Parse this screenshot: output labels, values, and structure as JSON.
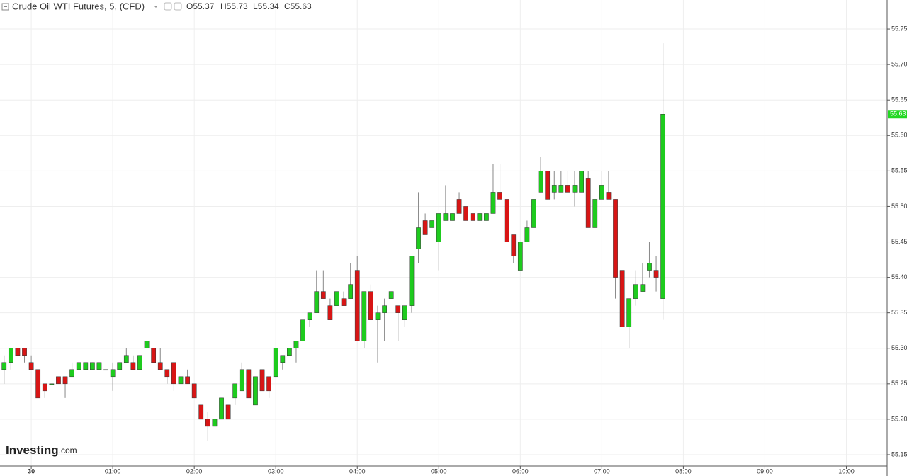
{
  "chart_data": {
    "type": "candlestick",
    "title": "Crude Oil WTI Futures, 5, (CFD)",
    "ohlc_header": [
      "O55.37",
      "H55.73",
      "L55.34",
      "C55.63"
    ],
    "logo": "Investing",
    "logo_suffix": ".com",
    "last_price": 55.63,
    "up_color": "#1ecb1e",
    "down_color": "#d81515",
    "grid": true,
    "x": [
      -20,
      -15,
      -10,
      -5,
      0,
      5,
      10,
      15,
      20,
      25,
      30,
      35,
      40,
      45,
      50,
      55,
      60,
      65,
      70,
      75,
      80,
      85,
      90,
      95,
      100,
      105,
      110,
      115,
      120,
      125,
      130,
      135,
      140,
      145,
      150,
      155,
      160,
      165,
      170,
      175,
      180,
      185,
      190,
      195,
      200,
      205,
      210,
      215,
      220,
      225,
      230,
      235,
      240,
      245,
      250,
      255,
      260,
      265,
      270,
      275,
      280,
      285,
      290,
      295,
      300,
      305,
      310,
      315,
      320,
      325,
      330,
      335,
      340,
      345,
      350,
      355,
      360,
      365,
      370,
      375,
      380,
      385,
      390,
      395,
      400,
      405,
      410,
      415,
      420,
      425,
      430,
      435,
      440,
      445,
      450,
      455,
      460,
      465
    ],
    "open": [
      55.27,
      55.28,
      55.3,
      55.3,
      55.28,
      55.27,
      55.25,
      55.25,
      55.26,
      55.26,
      55.26,
      55.27,
      55.27,
      55.27,
      55.27,
      55.27,
      55.26,
      55.27,
      55.28,
      55.28,
      55.27,
      55.3,
      55.3,
      55.28,
      55.27,
      55.28,
      55.25,
      55.26,
      55.25,
      55.22,
      55.2,
      55.19,
      55.2,
      55.22,
      55.23,
      55.24,
      55.27,
      55.22,
      55.27,
      55.26,
      55.26,
      55.28,
      55.29,
      55.3,
      55.31,
      55.34,
      55.35,
      55.38,
      55.36,
      55.36,
      55.37,
      55.37,
      55.41,
      55.31,
      55.38,
      55.34,
      55.35,
      55.37,
      55.36,
      55.34,
      55.36,
      55.44,
      55.48,
      55.47,
      55.45,
      55.48,
      55.48,
      55.51,
      55.5,
      55.49,
      55.48,
      55.48,
      55.49,
      55.52,
      55.51,
      55.46,
      55.41,
      55.45,
      55.47,
      55.52,
      55.55,
      55.52,
      55.52,
      55.53,
      55.52,
      55.52,
      55.54,
      55.47,
      55.51,
      55.52,
      55.51,
      55.41,
      55.33,
      55.37,
      55.38,
      55.41,
      55.41,
      55.37
    ],
    "high": [
      55.29,
      55.3,
      55.3,
      55.3,
      55.29,
      55.27,
      55.25,
      55.25,
      55.26,
      55.26,
      55.28,
      55.28,
      55.28,
      55.28,
      55.28,
      55.27,
      55.28,
      55.28,
      55.3,
      55.29,
      55.29,
      55.31,
      55.3,
      55.3,
      55.27,
      55.28,
      55.26,
      55.27,
      55.25,
      55.22,
      55.21,
      55.2,
      55.23,
      55.22,
      55.25,
      55.28,
      55.27,
      55.26,
      55.27,
      55.26,
      55.3,
      55.29,
      55.3,
      55.31,
      55.34,
      55.35,
      55.41,
      55.41,
      55.37,
      55.4,
      55.38,
      55.42,
      55.43,
      55.38,
      55.39,
      55.36,
      55.37,
      55.38,
      55.36,
      55.36,
      55.43,
      55.52,
      55.49,
      55.48,
      55.49,
      55.53,
      55.49,
      55.52,
      55.5,
      55.49,
      55.49,
      55.49,
      55.56,
      55.56,
      55.51,
      55.46,
      55.45,
      55.48,
      55.51,
      55.57,
      55.55,
      55.55,
      55.55,
      55.55,
      55.55,
      55.55,
      55.55,
      55.51,
      55.55,
      55.55,
      55.51,
      55.41,
      55.37,
      55.41,
      55.42,
      55.45,
      55.43,
      55.73
    ],
    "low": [
      55.25,
      55.27,
      55.29,
      55.28,
      55.27,
      55.23,
      55.23,
      55.25,
      55.25,
      55.23,
      55.26,
      55.27,
      55.27,
      55.27,
      55.27,
      55.27,
      55.24,
      55.27,
      55.28,
      55.27,
      55.27,
      55.3,
      55.28,
      55.27,
      55.25,
      55.24,
      55.25,
      55.25,
      55.23,
      55.2,
      55.17,
      55.19,
      55.2,
      55.2,
      55.22,
      55.24,
      55.23,
      55.22,
      55.24,
      55.23,
      55.26,
      55.27,
      55.29,
      55.28,
      55.31,
      55.33,
      55.35,
      55.37,
      55.34,
      55.36,
      55.36,
      55.37,
      55.31,
      55.3,
      55.34,
      55.28,
      55.31,
      55.37,
      55.31,
      55.33,
      55.35,
      55.42,
      55.46,
      55.47,
      55.41,
      55.48,
      55.48,
      55.49,
      55.48,
      55.48,
      55.48,
      55.48,
      55.49,
      55.51,
      55.45,
      55.42,
      55.41,
      55.45,
      55.47,
      55.52,
      55.51,
      55.51,
      55.52,
      55.52,
      55.5,
      55.52,
      55.47,
      55.47,
      55.51,
      55.51,
      55.37,
      55.33,
      55.3,
      55.36,
      55.38,
      55.4,
      55.38,
      55.34
    ],
    "close": [
      55.28,
      55.3,
      55.29,
      55.29,
      55.27,
      55.23,
      55.24,
      55.25,
      55.25,
      55.25,
      55.27,
      55.28,
      55.28,
      55.28,
      55.28,
      55.27,
      55.27,
      55.28,
      55.29,
      55.27,
      55.29,
      55.31,
      55.28,
      55.27,
      55.26,
      55.25,
      55.26,
      55.25,
      55.23,
      55.2,
      55.19,
      55.2,
      55.23,
      55.2,
      55.25,
      55.27,
      55.23,
      55.26,
      55.24,
      55.24,
      55.3,
      55.29,
      55.3,
      55.31,
      55.34,
      55.35,
      55.38,
      55.37,
      55.34,
      55.38,
      55.36,
      55.39,
      55.31,
      55.38,
      55.34,
      55.35,
      55.36,
      55.38,
      55.35,
      55.36,
      55.43,
      55.47,
      55.46,
      55.48,
      55.49,
      55.49,
      55.49,
      55.49,
      55.48,
      55.48,
      55.49,
      55.49,
      55.52,
      55.51,
      55.45,
      55.43,
      55.45,
      55.47,
      55.51,
      55.55,
      55.51,
      55.53,
      55.53,
      55.52,
      55.53,
      55.55,
      55.47,
      55.51,
      55.53,
      55.51,
      55.4,
      55.33,
      55.37,
      55.39,
      55.39,
      55.42,
      55.4,
      55.63
    ],
    "xlim": [
      -23,
      630
    ],
    "xticks": [
      {
        "value": 0,
        "label": "30"
      },
      {
        "value": 60,
        "label": "01:00"
      },
      {
        "value": 120,
        "label": "02:00"
      },
      {
        "value": 180,
        "label": "03:00"
      },
      {
        "value": 240,
        "label": "04:00"
      },
      {
        "value": 300,
        "label": "05:00"
      },
      {
        "value": 360,
        "label": "06:00"
      },
      {
        "value": 420,
        "label": "07:00"
      },
      {
        "value": 480,
        "label": "08:00"
      },
      {
        "value": 540,
        "label": "09:00"
      },
      {
        "value": 600,
        "label": "10:00"
      }
    ],
    "ylim": [
      55.134,
      55.791
    ],
    "yticks": [
      55.15,
      {
        "value": 55.2,
        "label": "55.20"
      },
      55.25,
      {
        "value": 55.3,
        "label": "55.30"
      },
      55.35,
      {
        "value": 55.4,
        "label": "55.40"
      },
      55.45,
      {
        "value": 55.5,
        "label": "55.50"
      },
      55.55,
      {
        "value": 55.6,
        "label": "55.60"
      },
      55.65,
      {
        "value": 55.7,
        "label": "55.70"
      },
      55.75
    ]
  }
}
